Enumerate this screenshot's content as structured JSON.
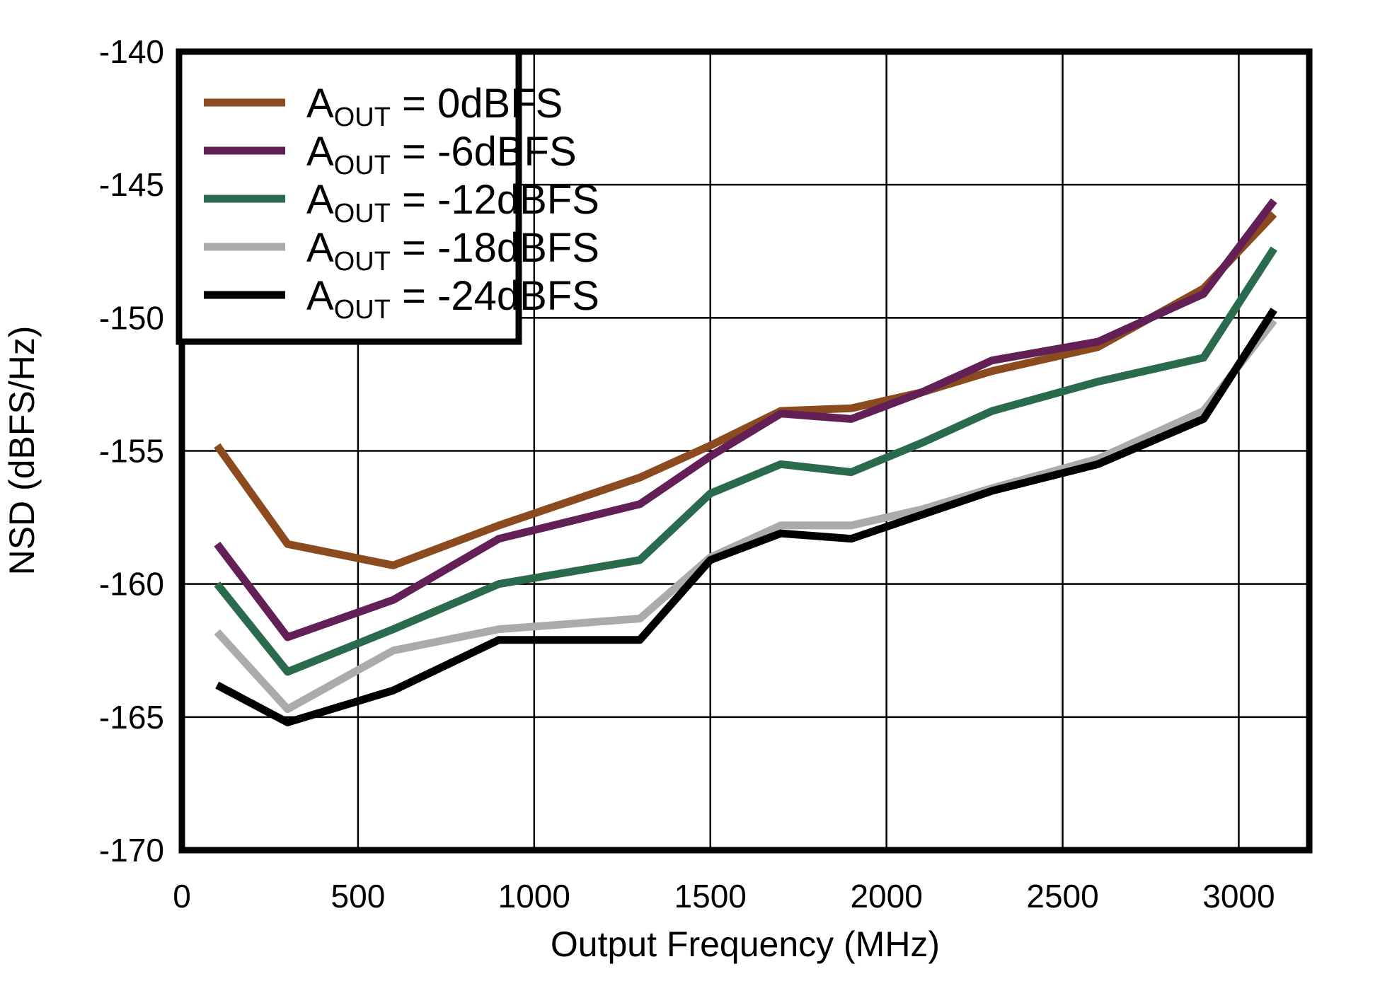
{
  "page": {
    "background": "#ffffff"
  },
  "chart_data": {
    "type": "line",
    "title": "",
    "xlabel": "Output Frequency (MHz)",
    "ylabel": "NSD (dBFS/Hz)",
    "xlim": [
      0,
      3200
    ],
    "ylim": [
      -170,
      -140
    ],
    "x_ticks": [
      0,
      500,
      1000,
      1500,
      2000,
      2500,
      3000
    ],
    "y_ticks": [
      -140,
      -145,
      -150,
      -155,
      -160,
      -165,
      -170
    ],
    "grid": true,
    "legend_position": "top-left",
    "frame_color": "#000000",
    "grid_color": "#000000",
    "x": [
      100,
      300,
      600,
      900,
      1300,
      1500,
      1700,
      1900,
      2100,
      2300,
      2600,
      2900,
      3100
    ],
    "series": [
      {
        "name": "AOUT = 0dBFS",
        "label": {
          "base": "A",
          "sub": "OUT",
          "suffix": " = 0dBFS"
        },
        "color": "#8C4A1F",
        "values": [
          -154.8,
          -158.5,
          -159.3,
          -157.8,
          -156.0,
          -154.8,
          -153.5,
          -153.4,
          -152.8,
          -152.0,
          -151.1,
          -148.9,
          -146.1
        ]
      },
      {
        "name": "AOUT = -6dBFS",
        "label": {
          "base": "A",
          "sub": "OUT",
          "suffix": " = -6dBFS"
        },
        "color": "#622057",
        "values": [
          -158.5,
          -162.0,
          -160.6,
          -158.3,
          -157.0,
          -155.2,
          -153.6,
          -153.8,
          -152.8,
          -151.6,
          -150.9,
          -149.1,
          -145.6
        ]
      },
      {
        "name": "AOUT = -12dBFS",
        "label": {
          "base": "A",
          "sub": "OUT",
          "suffix": " = -12dBFS"
        },
        "color": "#2B6B4D",
        "values": [
          -160.0,
          -163.3,
          -161.7,
          -160.0,
          -159.1,
          -156.6,
          -155.5,
          -155.8,
          -154.7,
          -153.5,
          -152.4,
          -151.5,
          -147.4
        ]
      },
      {
        "name": "AOUT = -18dBFS",
        "label": {
          "base": "A",
          "sub": "OUT",
          "suffix": " = -18dBFS"
        },
        "color": "#ABABAB",
        "values": [
          -161.8,
          -164.7,
          -162.5,
          -161.7,
          -161.3,
          -159.0,
          -157.8,
          -157.8,
          -157.2,
          -156.4,
          -155.3,
          -153.5,
          -150.1
        ]
      },
      {
        "name": "AOUT = -24dBFS",
        "label": {
          "base": "A",
          "sub": "OUT",
          "suffix": " = -24dBFS"
        },
        "color": "#000000",
        "values": [
          -163.8,
          -165.2,
          -164.0,
          -162.1,
          -162.1,
          -159.1,
          -158.1,
          -158.3,
          -157.4,
          -156.5,
          -155.5,
          -153.8,
          -149.7
        ]
      }
    ]
  }
}
